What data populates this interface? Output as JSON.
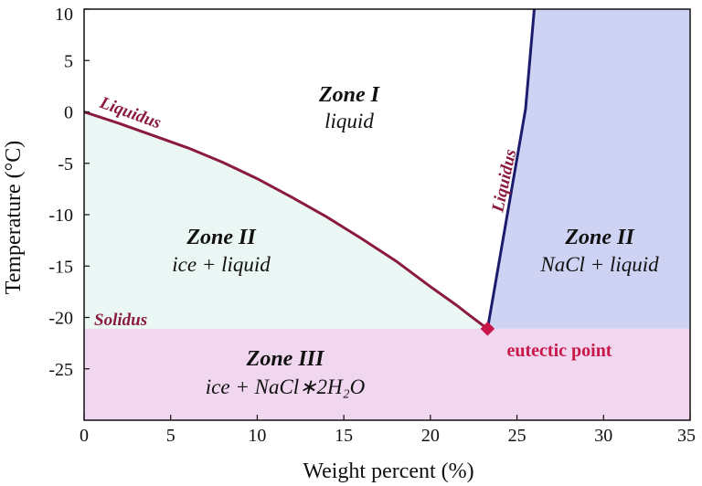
{
  "chart_data": {
    "type": "line",
    "title": "",
    "xlabel": "Weight percent (%)",
    "ylabel": "Temperature (°C)",
    "xlim": [
      0,
      35
    ],
    "ylim": [
      -30,
      10
    ],
    "x_ticks": [
      0,
      5,
      10,
      15,
      20,
      25,
      30,
      35
    ],
    "y_ticks": [
      10,
      5,
      0,
      -5,
      -10,
      -15,
      -20,
      -25
    ],
    "series": [
      {
        "name": "Liquidus (ice)",
        "color": "#8b1a40",
        "x": [
          0,
          2,
          4,
          6,
          8,
          10,
          12,
          14,
          16,
          18,
          20,
          21.5,
          22.5,
          23.3
        ],
        "y": [
          0,
          -1.1,
          -2.3,
          -3.5,
          -4.9,
          -6.5,
          -8.3,
          -10.2,
          -12.3,
          -14.5,
          -17.0,
          -18.8,
          -20.1,
          -21.1
        ]
      },
      {
        "name": "Liquidus (NaCl)",
        "color": "#1c1c6e",
        "x": [
          23.3,
          25.5,
          26.0
        ],
        "y": [
          -21.1,
          0.3,
          10
        ]
      },
      {
        "name": "Solidus",
        "x": [
          0,
          35
        ],
        "y": [
          -21.1,
          -21.1
        ]
      }
    ],
    "eutectic_point": {
      "x": 23.3,
      "y": -21.1,
      "color": "#c8184a"
    },
    "zones": [
      {
        "id": "zone-1",
        "title": "Zone I",
        "subtitle": "liquid",
        "fill": "#ffffff"
      },
      {
        "id": "zone-2-ice",
        "title": "Zone II",
        "subtitle": "ice + liquid",
        "fill": "#eaf7f4"
      },
      {
        "id": "zone-2-nacl",
        "title": "Zone II",
        "subtitle": "NaCl + liquid",
        "fill": "#cfd3f3"
      },
      {
        "id": "zone-3",
        "title": "Zone III",
        "subtitle": "ice + NaCl∗2H₂O",
        "fill": "#f0d6ee"
      }
    ],
    "labels": {
      "liquidus_left": "Liquidus",
      "liquidus_right": "Liquidus",
      "solidus": "Solidus",
      "eutectic": "eutectic point"
    }
  }
}
